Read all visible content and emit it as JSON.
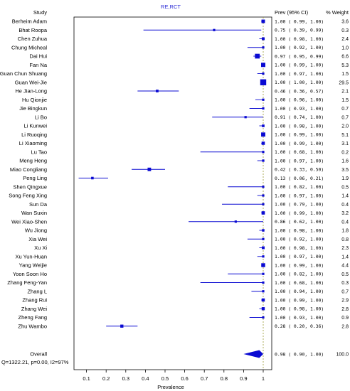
{
  "chart_data": {
    "type": "forest",
    "title": "RE,RCT",
    "columns": {
      "study": "Study",
      "estimate": "Prev (95% CI)",
      "weight": "% Weight"
    },
    "xlabel": "Prevalence",
    "xlim": [
      0.0,
      1.0
    ],
    "xticks": [
      0.1,
      0.2,
      0.3,
      0.4,
      0.5,
      0.6,
      0.7,
      0.8,
      0.9,
      1
    ],
    "xtick_labels": [
      "0.1",
      "0.2",
      "0.3",
      "0.4",
      "0.5",
      "0.6",
      "0.7",
      "0.8",
      "0.9",
      "1"
    ],
    "reference_line": 1.0,
    "studies": [
      {
        "name": "Berheim Adam",
        "est": 1.0,
        "lo": 0.99,
        "hi": 1.0,
        "ci_text": "1.00 ( 0.99,  1.00)",
        "weight": "3.6"
      },
      {
        "name": "Bhat Roopa",
        "est": 0.75,
        "lo": 0.39,
        "hi": 0.99,
        "ci_text": "0.75 ( 0.39,  0.99)",
        "weight": "0.3"
      },
      {
        "name": "Chen Zuhua",
        "est": 1.0,
        "lo": 0.98,
        "hi": 1.0,
        "ci_text": "1.00 ( 0.98,  1.00)",
        "weight": "2.4"
      },
      {
        "name": "Chung Micheal",
        "est": 1.0,
        "lo": 0.92,
        "hi": 1.0,
        "ci_text": "1.00 ( 0.92,  1.00)",
        "weight": "1.0"
      },
      {
        "name": "Dai Hui",
        "est": 0.97,
        "lo": 0.95,
        "hi": 0.99,
        "ci_text": "0.97 ( 0.95,  0.99)",
        "weight": "6.6"
      },
      {
        "name": "Fan Na",
        "est": 1.0,
        "lo": 0.99,
        "hi": 1.0,
        "ci_text": "1.00 ( 0.99,  1.00)",
        "weight": "5.3"
      },
      {
        "name": "Guan Chun Shuang",
        "est": 1.0,
        "lo": 0.97,
        "hi": 1.0,
        "ci_text": "1.00 ( 0.97,  1.00)",
        "weight": "1.5"
      },
      {
        "name": "Guan Wei-Jie",
        "est": 1.0,
        "lo": 1.0,
        "hi": 1.0,
        "ci_text": "1.00 ( 1.00,  1.00)",
        "weight": "29.5"
      },
      {
        "name": "He Jian-Long",
        "est": 0.46,
        "lo": 0.36,
        "hi": 0.57,
        "ci_text": "0.46 ( 0.36,  0.57)",
        "weight": "2.1"
      },
      {
        "name": "Hu Qionjie",
        "est": 1.0,
        "lo": 0.96,
        "hi": 1.0,
        "ci_text": "1.00 ( 0.96,  1.00)",
        "weight": "1.5"
      },
      {
        "name": "Jie Bingkun",
        "est": 1.0,
        "lo": 0.93,
        "hi": 1.0,
        "ci_text": "1.00 ( 0.93,  1.00)",
        "weight": "0.7"
      },
      {
        "name": "Li Bo",
        "est": 0.91,
        "lo": 0.74,
        "hi": 1.0,
        "ci_text": "0.91 ( 0.74,  1.00)",
        "weight": "0.7"
      },
      {
        "name": "Li Kunwei",
        "est": 1.0,
        "lo": 0.98,
        "hi": 1.0,
        "ci_text": "1.00 ( 0.98,  1.00)",
        "weight": "2.0"
      },
      {
        "name": "Li Ruoqing",
        "est": 1.0,
        "lo": 0.99,
        "hi": 1.0,
        "ci_text": "1.00 ( 0.99,  1.00)",
        "weight": "5.1"
      },
      {
        "name": "Li Xiaoming",
        "est": 1.0,
        "lo": 0.99,
        "hi": 1.0,
        "ci_text": "1.00 ( 0.99,  1.00)",
        "weight": "3.1"
      },
      {
        "name": "Lu Tao",
        "est": 1.0,
        "lo": 0.68,
        "hi": 1.0,
        "ci_text": "1.00 ( 0.68,  1.00)",
        "weight": "0.2"
      },
      {
        "name": "Meng Heng",
        "est": 1.0,
        "lo": 0.97,
        "hi": 1.0,
        "ci_text": "1.00 ( 0.97,  1.00)",
        "weight": "1.6"
      },
      {
        "name": "Miao Congliang",
        "est": 0.42,
        "lo": 0.33,
        "hi": 0.5,
        "ci_text": "0.42 ( 0.33,  0.50)",
        "weight": "3.5"
      },
      {
        "name": "Peng Ling",
        "est": 0.13,
        "lo": 0.06,
        "hi": 0.21,
        "ci_text": "0.13 ( 0.06,  0.21)",
        "weight": "1.9"
      },
      {
        "name": "Shen Qingxue",
        "est": 1.0,
        "lo": 0.82,
        "hi": 1.0,
        "ci_text": "1.00 ( 0.82,  1.00)",
        "weight": "0.5"
      },
      {
        "name": "Song Feng Xing",
        "est": 1.0,
        "lo": 0.97,
        "hi": 1.0,
        "ci_text": "1.00 ( 0.97,  1.00)",
        "weight": "1.4"
      },
      {
        "name": "Sun Da",
        "est": 1.0,
        "lo": 0.79,
        "hi": 1.0,
        "ci_text": "1.00 ( 0.79,  1.00)",
        "weight": "0.4"
      },
      {
        "name": "Wan Suxin",
        "est": 1.0,
        "lo": 0.99,
        "hi": 1.0,
        "ci_text": "1.00 ( 0.99,  1.00)",
        "weight": "3.2"
      },
      {
        "name": "Wei Xiao-Shen",
        "est": 0.86,
        "lo": 0.62,
        "hi": 1.0,
        "ci_text": "0.86 ( 0.62,  1.00)",
        "weight": "0.4"
      },
      {
        "name": "Wu Jiong",
        "est": 1.0,
        "lo": 0.98,
        "hi": 1.0,
        "ci_text": "1.00 ( 0.98,  1.00)",
        "weight": "1.8"
      },
      {
        "name": "Xia Wei",
        "est": 1.0,
        "lo": 0.92,
        "hi": 1.0,
        "ci_text": "1.00 ( 0.92,  1.00)",
        "weight": "0.8"
      },
      {
        "name": "Xu Xi",
        "est": 1.0,
        "lo": 0.98,
        "hi": 1.0,
        "ci_text": "1.00 ( 0.98,  1.00)",
        "weight": "2.3"
      },
      {
        "name": "Xu Yun-Huan",
        "est": 1.0,
        "lo": 0.97,
        "hi": 1.0,
        "ci_text": "1.00 ( 0.97,  1.00)",
        "weight": "1.4"
      },
      {
        "name": "Yang Weijie",
        "est": 1.0,
        "lo": 0.99,
        "hi": 1.0,
        "ci_text": "1.00 ( 0.99,  1.00)",
        "weight": "4.4"
      },
      {
        "name": "Yoon Soon Ho",
        "est": 1.0,
        "lo": 0.82,
        "hi": 1.0,
        "ci_text": "1.00 ( 0.82,  1.00)",
        "weight": "0.5"
      },
      {
        "name": "Zhang Feng-Yan",
        "est": 1.0,
        "lo": 0.68,
        "hi": 1.0,
        "ci_text": "1.00 ( 0.68,  1.00)",
        "weight": "0.3"
      },
      {
        "name": "Zhang L",
        "est": 1.0,
        "lo": 0.94,
        "hi": 1.0,
        "ci_text": "1.00 ( 0.94,  1.00)",
        "weight": "0.7"
      },
      {
        "name": "Zhang Rui",
        "est": 1.0,
        "lo": 0.99,
        "hi": 1.0,
        "ci_text": "1.00 ( 0.99,  1.00)",
        "weight": "2.9"
      },
      {
        "name": "Zhang Wei",
        "est": 1.0,
        "lo": 0.98,
        "hi": 1.0,
        "ci_text": "1.00 ( 0.98,  1.00)",
        "weight": "2.8"
      },
      {
        "name": "Zheng Fang",
        "est": 1.0,
        "lo": 0.93,
        "hi": 1.0,
        "ci_text": "1.00 ( 0.93,  1.00)",
        "weight": "0.9"
      },
      {
        "name": "Zhu Wambo",
        "est": 0.28,
        "lo": 0.2,
        "hi": 0.36,
        "ci_text": "0.28 ( 0.20,  0.36)",
        "weight": "2.8"
      }
    ],
    "overall": {
      "name": "Overall",
      "est": 0.98,
      "lo": 0.9,
      "hi": 1.0,
      "ci_text": "0.98 ( 0.90,  1.00)",
      "weight": "100.0"
    },
    "heterogeneity": "Q=1322.21, p=0.00, I2=97%",
    "colors": {
      "marker": "#0a0ad2",
      "text": "#000000",
      "title": "#2b2bd6",
      "refline": "#9a9a33"
    }
  }
}
